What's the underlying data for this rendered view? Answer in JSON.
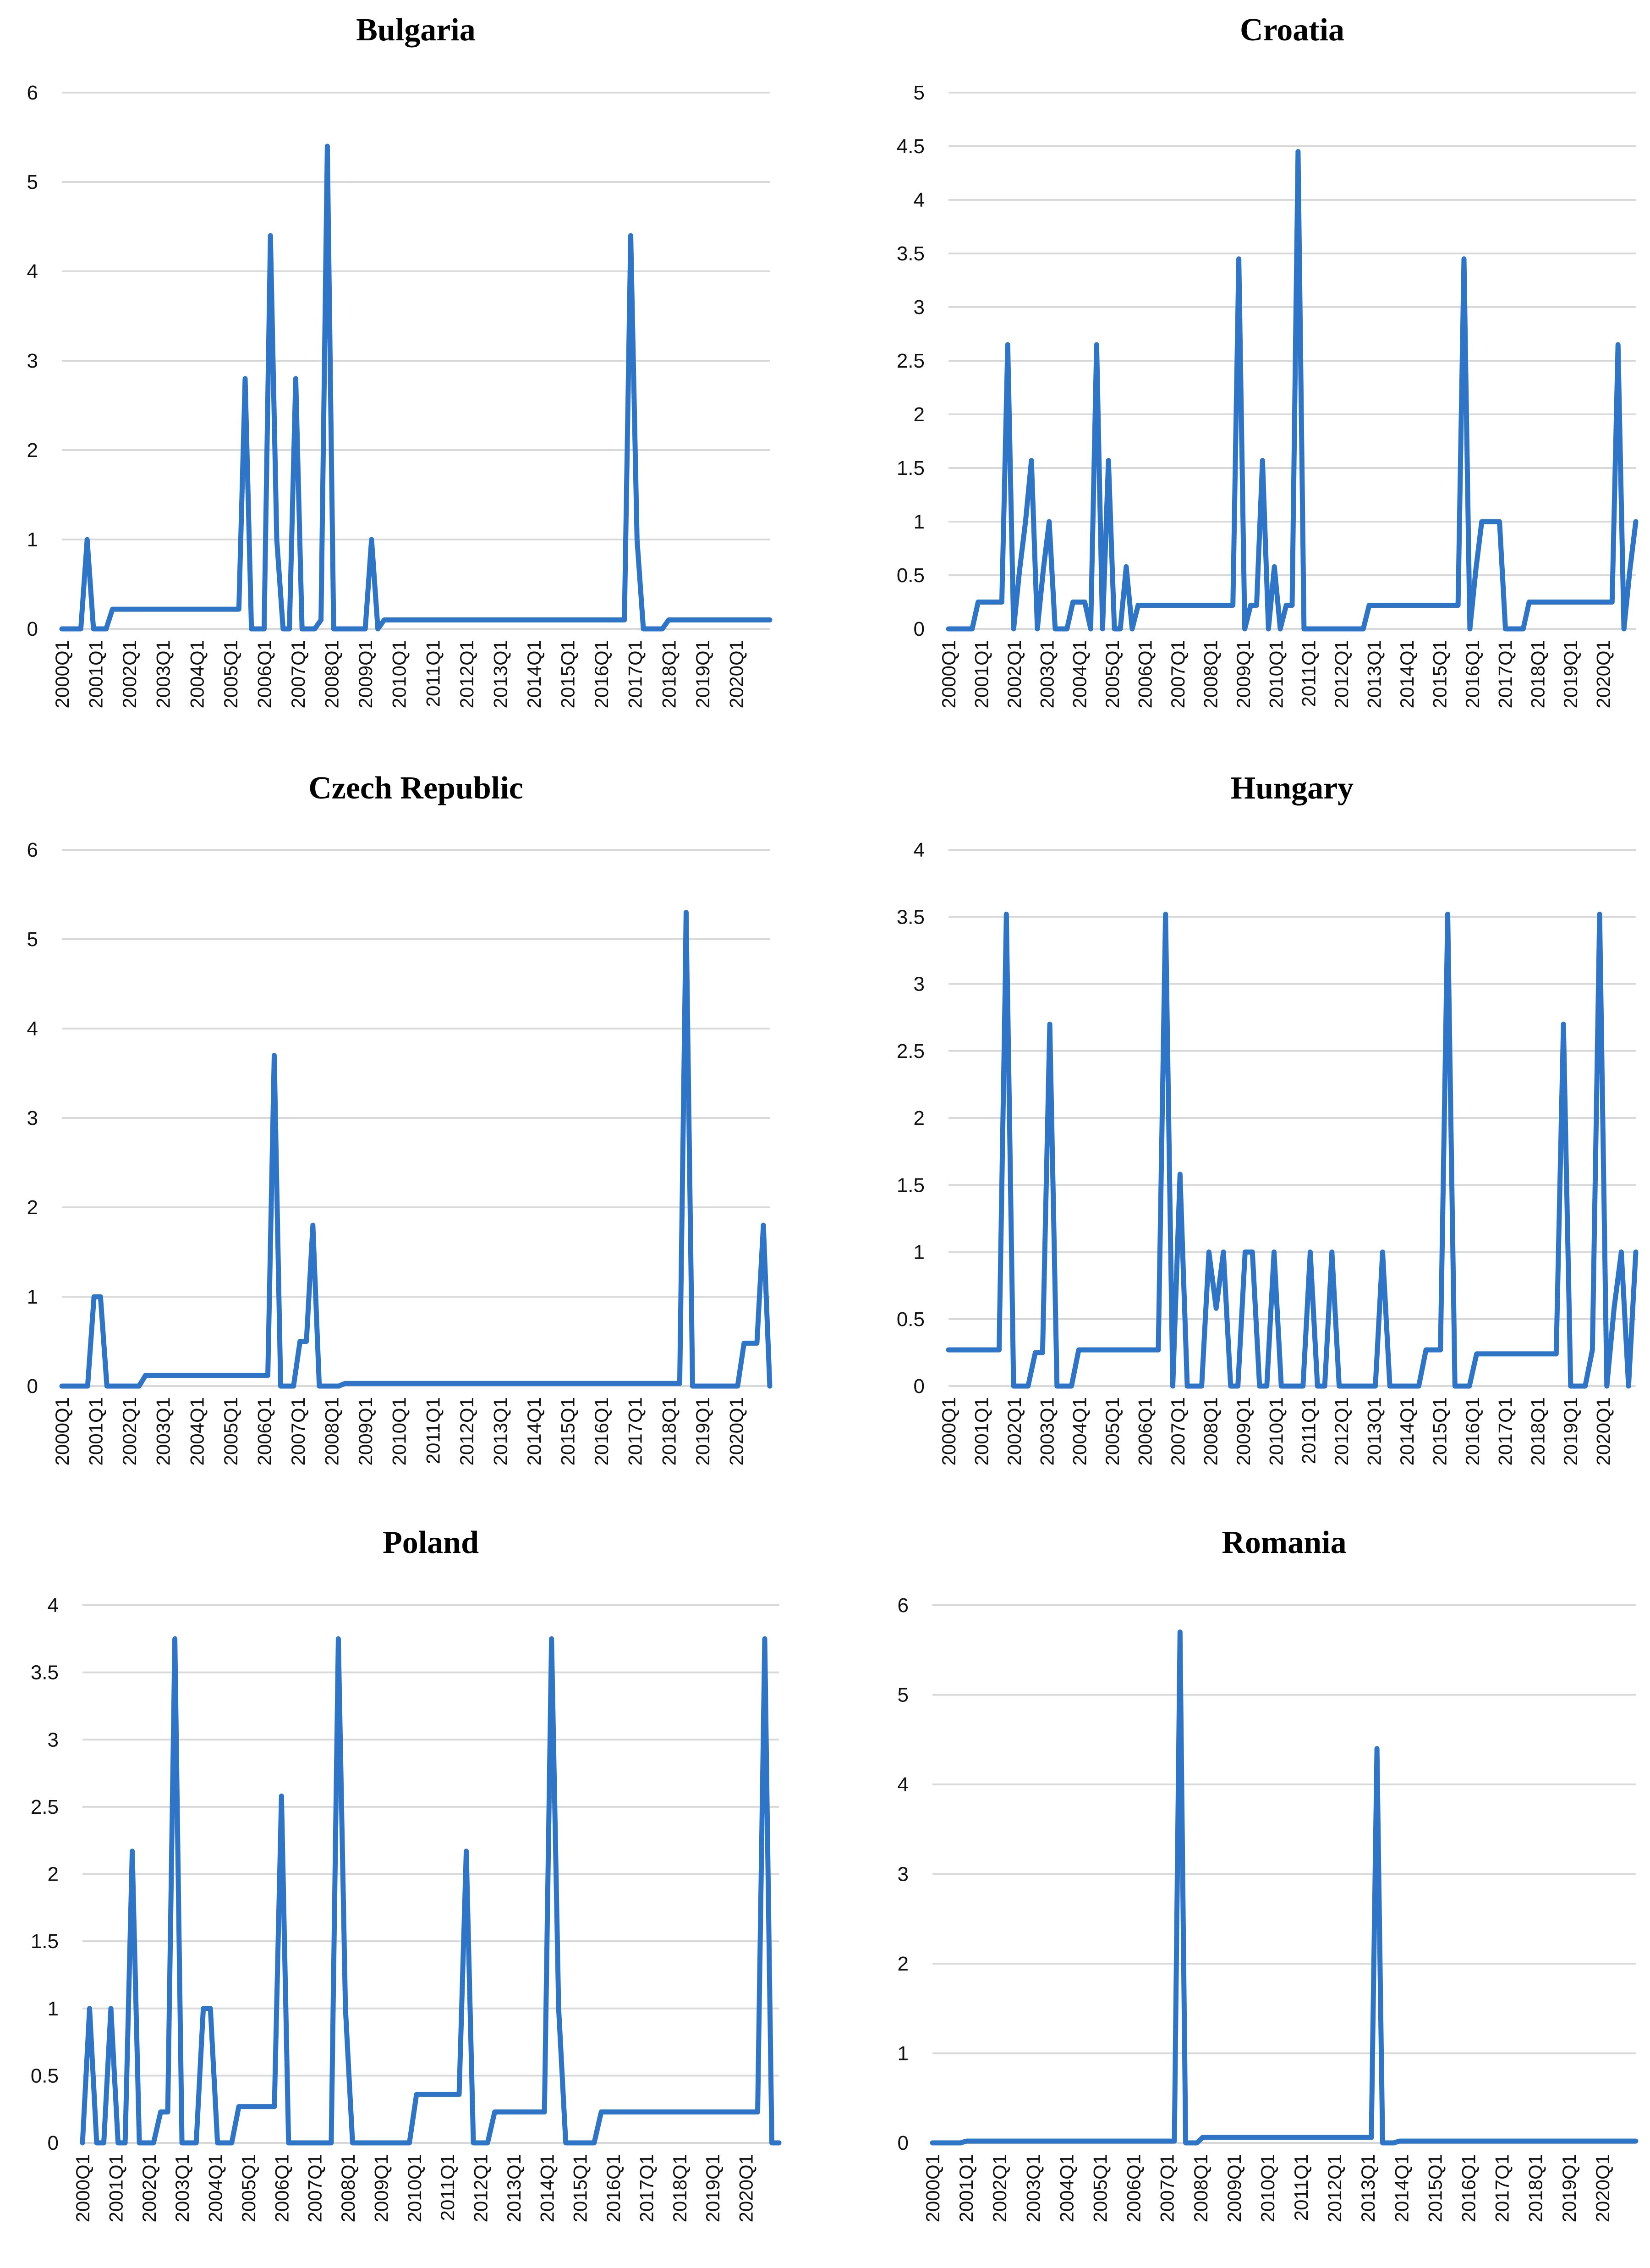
{
  "colors": {
    "series": "#2e75c8",
    "grid": "#d9d9d9"
  },
  "x_labels": [
    "2000Q1",
    "2001Q1",
    "2002Q1",
    "2003Q1",
    "2004Q1",
    "2005Q1",
    "2006Q1",
    "2007Q1",
    "2008Q1",
    "2009Q1",
    "2010Q1",
    "2011Q1",
    "2012Q1",
    "2013Q1",
    "2014Q1",
    "2015Q1",
    "2016Q1",
    "2017Q1",
    "2018Q1",
    "2019Q1",
    "2020Q1"
  ],
  "chart_data": [
    {
      "type": "line",
      "title": "Bulgaria",
      "ylim": [
        0,
        6
      ],
      "yticks": [
        "0",
        "1",
        "2",
        "3",
        "4",
        "5",
        "6"
      ],
      "series": [
        {
          "name": "Bulgaria",
          "values": [
            0,
            0,
            0,
            0,
            1,
            0,
            0,
            0,
            0.22,
            0.22,
            0.22,
            0.22,
            0.22,
            0.22,
            0.22,
            0.22,
            0.22,
            0.22,
            0.22,
            0.22,
            0.22,
            0.22,
            0.22,
            0.22,
            0.22,
            0.22,
            0.22,
            0.22,
            0.22,
            2.8,
            0,
            0,
            0,
            4.4,
            1,
            0,
            0,
            2.8,
            0,
            0,
            0,
            0.1,
            5.4,
            0,
            0,
            0,
            0,
            0,
            0,
            1,
            0,
            0.1,
            0.1,
            0.1,
            0.1,
            0.1,
            0.1,
            0.1,
            0.1,
            0.1,
            0.1,
            0.1,
            0.1,
            0.1,
            0.1,
            0.1,
            0.1,
            0.1,
            0.1,
            0.1,
            0.1,
            0.1,
            0.1,
            0.1,
            0.1,
            0.1,
            0.1,
            0.1,
            0.1,
            0.1,
            0.1,
            0.1,
            0.1,
            0.1,
            0.1,
            0.1,
            0.1,
            0.1,
            0.1,
            0.1,
            4.4,
            1,
            0,
            0,
            0,
            0,
            0.1,
            0.1,
            0.1,
            0.1,
            0.1,
            0.1,
            0.1,
            0.1,
            0.1,
            0.1,
            0.1,
            0.1,
            0.1,
            0.1,
            0.1,
            0.1,
            0.1
          ]
        }
      ]
    },
    {
      "type": "line",
      "title": "Croatia",
      "ylim": [
        0,
        5
      ],
      "yticks": [
        "0",
        "0.5",
        "1",
        "1.5",
        "2",
        "2.5",
        "3",
        "3.5",
        "4",
        "4.5",
        "5"
      ],
      "series": [
        {
          "name": "Croatia",
          "values": [
            0,
            0,
            0,
            0,
            0,
            0.25,
            0.25,
            0.25,
            0.25,
            0.25,
            2.65,
            0,
            0.55,
            1,
            1.57,
            0,
            0.55,
            1,
            0,
            0,
            0,
            0.25,
            0.25,
            0.25,
            0,
            2.65,
            0,
            1.57,
            0,
            0,
            0.58,
            0,
            0.22,
            0.22,
            0.22,
            0.22,
            0.22,
            0.22,
            0.22,
            0.22,
            0.22,
            0.22,
            0.22,
            0.22,
            0.22,
            0.22,
            0.22,
            0.22,
            0.22,
            3.45,
            0,
            0.22,
            0.22,
            1.57,
            0,
            0.58,
            0,
            0.22,
            0.22,
            4.45,
            0,
            0,
            0,
            0,
            0,
            0,
            0,
            0,
            0,
            0,
            0,
            0.22,
            0.22,
            0.22,
            0.22,
            0.22,
            0.22,
            0.22,
            0.22,
            0.22,
            0.22,
            0.22,
            0.22,
            0.22,
            0.22,
            0.22,
            0.22,
            3.45,
            0,
            0.55,
            1,
            1,
            1,
            1,
            0,
            0,
            0,
            0,
            0.25,
            0.25,
            0.25,
            0.25,
            0.25,
            0.25,
            0.25,
            0.25,
            0.25,
            0.25,
            0.25,
            0.25,
            0.25,
            0.25,
            0.25,
            2.65,
            0,
            0.55,
            1
          ]
        }
      ]
    },
    {
      "type": "line",
      "title": "Czech Republic",
      "ylim": [
        0,
        6
      ],
      "yticks": [
        "0",
        "1",
        "2",
        "3",
        "4",
        "5",
        "6"
      ],
      "series": [
        {
          "name": "Czech Republic",
          "values": [
            0,
            0,
            0,
            0,
            0,
            1,
            1,
            0,
            0,
            0,
            0,
            0,
            0,
            0.12,
            0.12,
            0.12,
            0.12,
            0.12,
            0.12,
            0.12,
            0.12,
            0.12,
            0.12,
            0.12,
            0.12,
            0.12,
            0.12,
            0.12,
            0.12,
            0.12,
            0.12,
            0.12,
            0.12,
            3.7,
            0,
            0,
            0,
            0.5,
            0.5,
            1.8,
            0,
            0,
            0,
            0,
            0.03,
            0.03,
            0.03,
            0.03,
            0.03,
            0.03,
            0.03,
            0.03,
            0.03,
            0.03,
            0.03,
            0.03,
            0.03,
            0.03,
            0.03,
            0.03,
            0.03,
            0.03,
            0.03,
            0.03,
            0.03,
            0.03,
            0.03,
            0.03,
            0.03,
            0.03,
            0.03,
            0.03,
            0.03,
            0.03,
            0.03,
            0.03,
            0.03,
            0.03,
            0.03,
            0.03,
            0.03,
            0.03,
            0.03,
            0.03,
            0.03,
            0.03,
            0.03,
            0.03,
            0.03,
            0.03,
            0.03,
            0.03,
            0.03,
            0.03,
            0.03,
            0.03,
            0.03,
            5.3,
            0,
            0,
            0,
            0,
            0,
            0,
            0,
            0,
            0.48,
            0.48,
            0.48,
            1.8,
            0
          ]
        }
      ]
    },
    {
      "type": "line",
      "title": "Hungary",
      "ylim": [
        0,
        4
      ],
      "yticks": [
        "0",
        "0.5",
        "1",
        "1.5",
        "2",
        "2.5",
        "3",
        "3.5",
        "4"
      ],
      "series": [
        {
          "name": "Hungary",
          "values": [
            0.27,
            0.27,
            0.27,
            0.27,
            0.27,
            0.27,
            0.27,
            0.27,
            3.52,
            0,
            0,
            0,
            0.25,
            0.25,
            2.7,
            0,
            0,
            0,
            0.27,
            0.27,
            0.27,
            0.27,
            0.27,
            0.27,
            0.27,
            0.27,
            0.27,
            0.27,
            0.27,
            0.27,
            3.52,
            0,
            1.58,
            0,
            0,
            0,
            1,
            0.58,
            1,
            0,
            0,
            1,
            1,
            0,
            0,
            1,
            0,
            0,
            0,
            0,
            1,
            0,
            0,
            1,
            0,
            0,
            0,
            0,
            0,
            0,
            1,
            0,
            0,
            0,
            0,
            0,
            0.27,
            0.27,
            0.27,
            3.52,
            0,
            0,
            0,
            0.24,
            0.24,
            0.24,
            0.24,
            0.24,
            0.24,
            0.24,
            0.24,
            0.24,
            0.24,
            0.24,
            0.24,
            2.7,
            0,
            0,
            0,
            0.27,
            3.52,
            0,
            0.58,
            1,
            0,
            1
          ]
        }
      ]
    },
    {
      "type": "line",
      "title": "Poland",
      "ylim": [
        0,
        4
      ],
      "yticks": [
        "0",
        "0.5",
        "1",
        "1.5",
        "2",
        "2.5",
        "3",
        "3.5",
        "4"
      ],
      "series": [
        {
          "name": "Poland",
          "values": [
            0,
            1,
            0,
            0,
            1,
            0,
            0,
            2.17,
            0,
            0,
            0,
            0.23,
            0.23,
            3.75,
            0,
            0,
            0,
            1,
            1,
            0,
            0,
            0,
            0.27,
            0.27,
            0.27,
            0.27,
            0.27,
            0.27,
            2.58,
            0,
            0,
            0,
            0,
            0,
            0,
            0,
            3.75,
            1,
            0,
            0,
            0,
            0,
            0,
            0,
            0,
            0,
            0,
            0.36,
            0.36,
            0.36,
            0.36,
            0.36,
            0.36,
            0.36,
            2.17,
            0,
            0,
            0,
            0.23,
            0.23,
            0.23,
            0.23,
            0.23,
            0.23,
            0.23,
            0.23,
            3.75,
            1,
            0,
            0,
            0,
            0,
            0,
            0.23,
            0.23,
            0.23,
            0.23,
            0.23,
            0.23,
            0.23,
            0.23,
            0.23,
            0.23,
            0.23,
            0.23,
            0.23,
            0.23,
            0.23,
            0.23,
            0.23,
            0.23,
            0.23,
            0.23,
            0.23,
            0.23,
            0.23,
            3.75,
            0,
            0
          ]
        }
      ]
    },
    {
      "type": "line",
      "title": "Romania",
      "ylim": [
        0,
        6
      ],
      "yticks": [
        "0",
        "1",
        "2",
        "3",
        "4",
        "5",
        "6"
      ],
      "series": [
        {
          "name": "Romania",
          "values": [
            0,
            0,
            0,
            0,
            0,
            0,
            0.02,
            0.02,
            0.02,
            0.02,
            0.02,
            0.02,
            0.02,
            0.02,
            0.02,
            0.02,
            0.02,
            0.02,
            0.02,
            0.02,
            0.02,
            0.02,
            0.02,
            0.02,
            0.02,
            0.02,
            0.02,
            0.02,
            0.02,
            0.02,
            0.02,
            0.02,
            0.02,
            0.02,
            0.02,
            0.02,
            0.02,
            0.02,
            0.02,
            0.02,
            0.02,
            0.02,
            0.02,
            0.02,
            5.7,
            0,
            0,
            0,
            0.06,
            0.06,
            0.06,
            0.06,
            0.06,
            0.06,
            0.06,
            0.06,
            0.06,
            0.06,
            0.06,
            0.06,
            0.06,
            0.06,
            0.06,
            0.06,
            0.06,
            0.06,
            0.06,
            0.06,
            0.06,
            0.06,
            0.06,
            0.06,
            0.06,
            0.06,
            0.06,
            0.06,
            0.06,
            0.06,
            0.06,
            4.4,
            0,
            0,
            0,
            0.02,
            0.02,
            0.02,
            0.02,
            0.02,
            0.02,
            0.02,
            0.02,
            0.02,
            0.02,
            0.02,
            0.02,
            0.02,
            0.02,
            0.02,
            0.02,
            0.02,
            0.02,
            0.02,
            0.02,
            0.02,
            0.02,
            0.02,
            0.02,
            0.02,
            0.02,
            0.02,
            0.02,
            0.02,
            0.02,
            0.02,
            0.02,
            0.02,
            0.02,
            0.02,
            0.02,
            0.02,
            0.02,
            0.02,
            0.02,
            0.02,
            0.02,
            0.02
          ]
        }
      ]
    }
  ]
}
